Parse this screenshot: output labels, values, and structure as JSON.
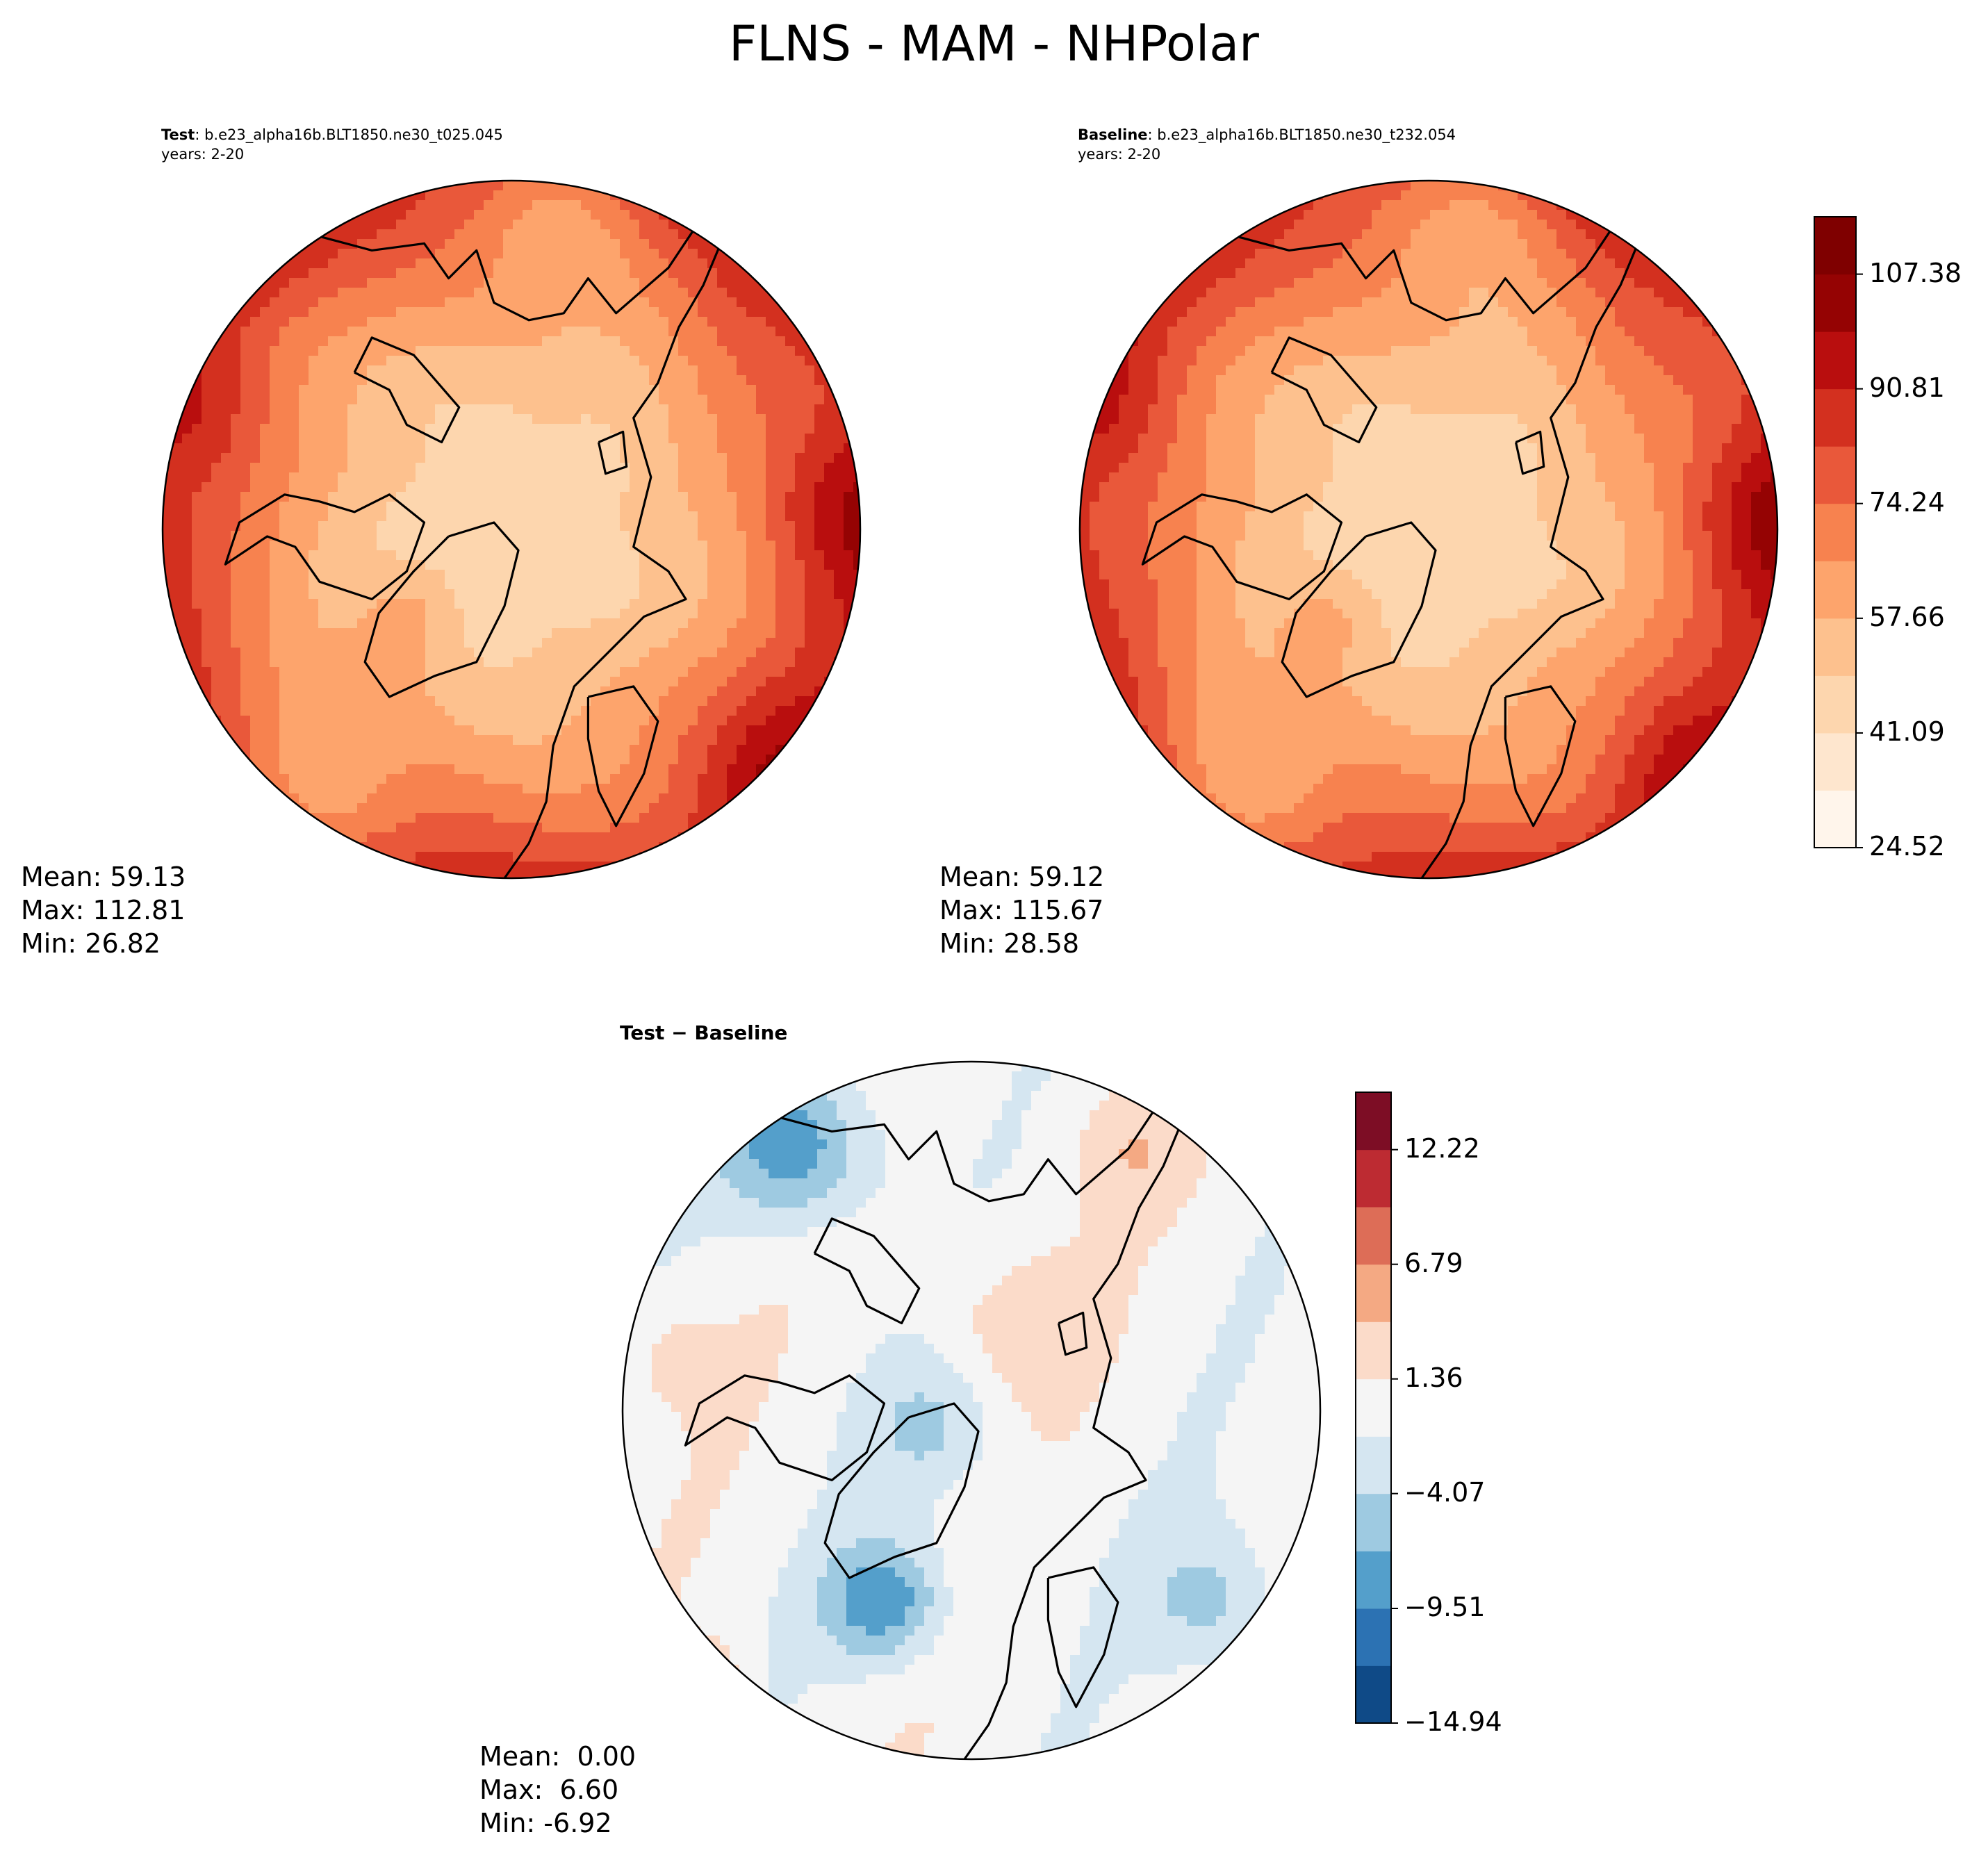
{
  "title": "FLNS - MAM - NHPolar",
  "panels": {
    "test": {
      "label": "Test",
      "case": ": b.e23_alpha16b.BLT1850.ne30_t025.045",
      "years": "years: 2-20",
      "stats": {
        "mean": "Mean: 59.13",
        "max": "Max: 112.81",
        "min": "Min: 26.82"
      }
    },
    "baseline": {
      "label": "Baseline",
      "case": ": b.e23_alpha16b.BLT1850.ne30_t232.054",
      "years": "years: 2-20",
      "stats": {
        "mean": "Mean: 59.12",
        "max": "Max: 115.67",
        "min": "Min: 28.58"
      }
    },
    "diff": {
      "title": "Test − Baseline",
      "stats": {
        "mean": "Mean:  0.00",
        "max": "Max:  6.60",
        "min": "Min: -6.92"
      }
    }
  },
  "colorbars": {
    "main": {
      "levels": [
        24.52,
        32.81,
        41.09,
        49.38,
        57.66,
        65.95,
        74.24,
        82.52,
        90.81,
        99.09,
        107.38,
        115.67
      ],
      "tick_labels": [
        "24.52",
        "41.09",
        "57.66",
        "74.24",
        "90.81",
        "107.38"
      ],
      "colors": [
        "#fff5eb",
        "#fee6ce",
        "#fdd6ae",
        "#fdc18e",
        "#fda46c",
        "#f7824f",
        "#e9583a",
        "#d3301f",
        "#b90e0e",
        "#950303",
        "#7f0000"
      ]
    },
    "diff": {
      "levels": [
        -14.94,
        -12.22,
        -9.51,
        -6.79,
        -4.07,
        -1.36,
        1.36,
        4.07,
        6.79,
        9.51,
        12.22,
        14.94
      ],
      "tick_labels": [
        "−14.94",
        "−9.51",
        "−4.07",
        "1.36",
        "6.79",
        "12.22"
      ],
      "colors": [
        "#0f4a87",
        "#2c72b3",
        "#549fcb",
        "#9ecae1",
        "#d5e6f1",
        "#f5f5f5",
        "#fbdbc9",
        "#f4a983",
        "#dd6d57",
        "#bd2b32",
        "#7d0d25"
      ]
    }
  },
  "chart_data": [
    {
      "type": "heatmap",
      "title": "Test : b.e23_alpha16b.BLT1850.ne30_t025.045",
      "subtitle": "years: 2-20",
      "projection": "north polar stereographic",
      "mean": 59.13,
      "max": 112.81,
      "min": 26.82,
      "color_range": [
        24.52,
        115.67
      ],
      "pattern": "low values (~41-57) over the Arctic Ocean center, rising toward ~90-112 near the outer circle"
    },
    {
      "type": "heatmap",
      "title": "Baseline : b.e23_alpha16b.BLT1850.ne30_t232.054",
      "subtitle": "years: 2-20",
      "projection": "north polar stereographic",
      "mean": 59.12,
      "max": 115.67,
      "min": 28.58,
      "color_range": [
        24.52,
        115.67
      ]
    },
    {
      "type": "heatmap",
      "title": "Test − Baseline",
      "projection": "north polar stereographic",
      "mean": 0.0,
      "max": 6.6,
      "min": -6.92,
      "color_range": [
        -14.94,
        14.94
      ]
    }
  ]
}
